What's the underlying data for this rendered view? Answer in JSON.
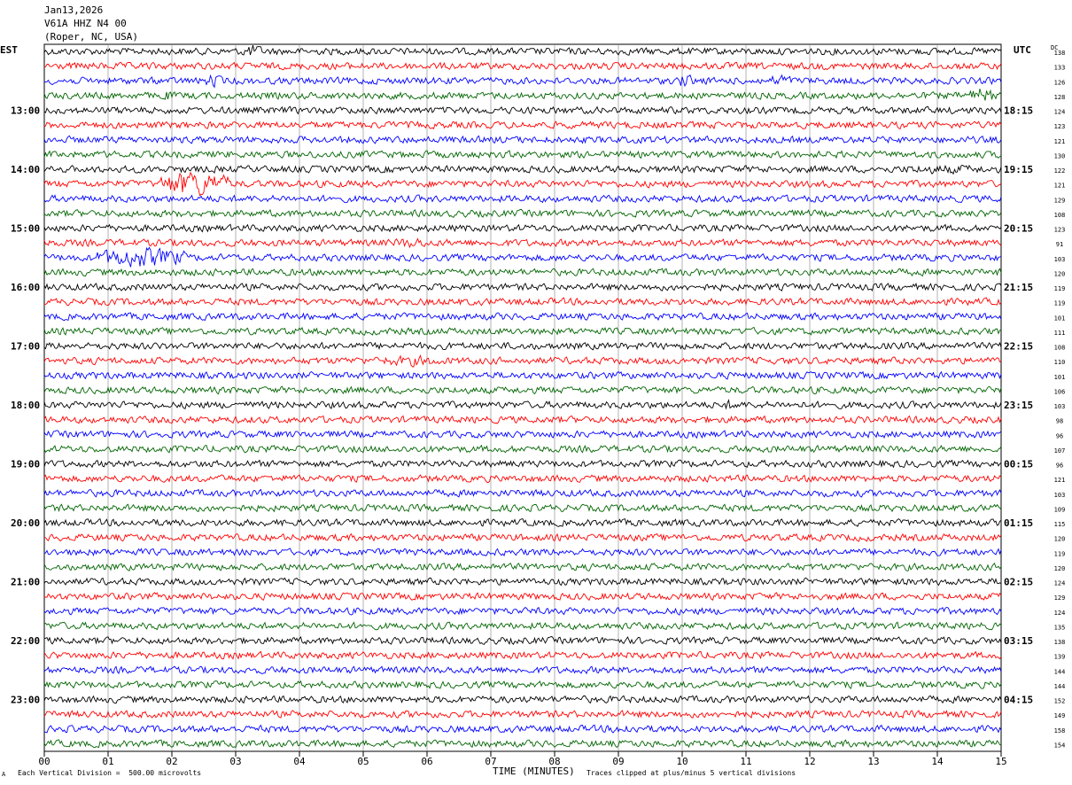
{
  "header": {
    "date": "Jan13,2026",
    "station": "V61A HHZ N4 00",
    "location": "(Roper, NC, USA)"
  },
  "left_tz": "EST",
  "right_tz": "UTC",
  "dc_label": "DC",
  "footer": {
    "left_note": "Each Vertical Division =  500.00 microvolts",
    "axis_title": "TIME (MINUTES)",
    "right_note": "Traces clipped at plus/minus 5 vertical divisions",
    "corner_mark": "A"
  },
  "colors": {
    "trace_cycle": [
      "#000000",
      "#ff0000",
      "#0000ff",
      "#006400"
    ],
    "grid": "#808080",
    "frame": "#000000"
  },
  "chart_data": {
    "type": "line",
    "title": "V61A HHZ N4 00 (Roper, NC, USA) Jan13,2026",
    "xlabel": "TIME (MINUTES)",
    "x_ticks": [
      "00",
      "01",
      "02",
      "03",
      "04",
      "05",
      "06",
      "07",
      "08",
      "09",
      "10",
      "11",
      "12",
      "13",
      "14",
      "15"
    ],
    "xlim": [
      0,
      15
    ],
    "row_minutes": 15,
    "rows": 48,
    "grid": true,
    "est_hour_labels": [
      "13:00",
      "14:00",
      "15:00",
      "16:00",
      "17:00",
      "18:00",
      "19:00",
      "20:00",
      "21:00",
      "22:00",
      "23:00"
    ],
    "utc_hour_labels": [
      "18:15",
      "19:15",
      "20:15",
      "21:15",
      "22:15",
      "23:15",
      "00:15",
      "01:15",
      "02:15",
      "03:15",
      "04:15"
    ],
    "hour_label_first_row": 4,
    "hour_label_every": 4,
    "dc_offsets": [
      138,
      133,
      126,
      128,
      124,
      123,
      121,
      130,
      122,
      121,
      129,
      108,
      123,
      91,
      103,
      120,
      119,
      119,
      101,
      111,
      108,
      110,
      101,
      106,
      103,
      98,
      96,
      107,
      96,
      121,
      103,
      109,
      115,
      120,
      119,
      120,
      124,
      129,
      124,
      135,
      138,
      139,
      144,
      144,
      152,
      149,
      158,
      154
    ],
    "events": [
      {
        "row": 0,
        "start_min": 3.1,
        "end_min": 3.4,
        "amp": 2.0
      },
      {
        "row": 2,
        "start_min": 2.5,
        "end_min": 2.8,
        "amp": 2.0
      },
      {
        "row": 2,
        "start_min": 9.9,
        "end_min": 10.2,
        "amp": 2.0
      },
      {
        "row": 2,
        "start_min": 11.4,
        "end_min": 11.7,
        "amp": 2.0
      },
      {
        "row": 3,
        "start_min": 1.8,
        "end_min": 2.0,
        "amp": 1.6
      },
      {
        "row": 3,
        "start_min": 14.5,
        "end_min": 14.9,
        "amp": 2.4
      },
      {
        "row": 8,
        "start_min": 13.5,
        "end_min": 14.7,
        "amp": 1.4
      },
      {
        "row": 9,
        "start_min": 1.8,
        "end_min": 2.9,
        "amp": 4.0
      },
      {
        "row": 13,
        "start_min": 5.5,
        "end_min": 6.0,
        "amp": 1.6
      },
      {
        "row": 14,
        "start_min": 0.8,
        "end_min": 2.2,
        "amp": 3.2
      },
      {
        "row": 21,
        "start_min": 5.3,
        "end_min": 6.2,
        "amp": 1.6
      },
      {
        "row": 24,
        "start_min": 10.6,
        "end_min": 10.9,
        "amp": 1.5
      },
      {
        "row": 46,
        "start_min": 8.9,
        "end_min": 9.3,
        "amp": 1.5
      }
    ]
  }
}
